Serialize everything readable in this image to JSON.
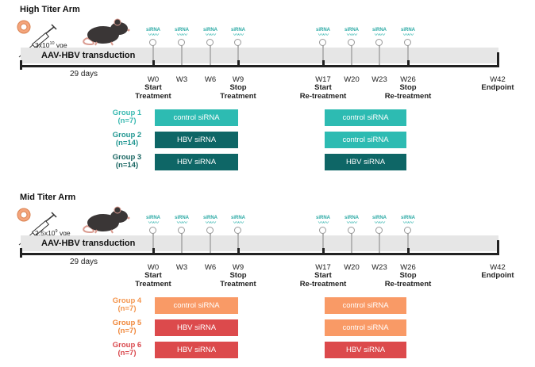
{
  "arms": [
    {
      "title": "High Titer Arm",
      "dose": "3x10",
      "dose_exp": "10",
      "dose_unit": " vge",
      "transduction": "AAV-HBV transduction",
      "days": "29 days",
      "weeks": [
        "W0",
        "W3",
        "W6",
        "W9",
        "W17",
        "W20",
        "W23",
        "W26",
        "W42"
      ],
      "phases": [
        {
          "week": "W0",
          "lines": [
            "Start",
            "Treatment"
          ]
        },
        {
          "week": "W9",
          "lines": [
            "Stop",
            "Treatment"
          ]
        },
        {
          "week": "W17",
          "lines": [
            "Start",
            "Re-treatment"
          ]
        },
        {
          "week": "W26",
          "lines": [
            "Stop",
            "Re-treatment"
          ]
        },
        {
          "week": "W42",
          "lines": [
            "Endpoint"
          ]
        }
      ],
      "sirna_label": "siRNA",
      "groups": [
        {
          "name": "Group 1",
          "n": "(n=7)",
          "color": "#3bbab2",
          "treatment": "control siRNA",
          "treatment_color": "#2dbbb2",
          "retreatment": "control siRNA",
          "retreatment_color": "#2dbbb2"
        },
        {
          "name": "Group 2",
          "n": "(n=14)",
          "color": "#1f9690",
          "treatment": "HBV siRNA",
          "treatment_color": "#0e6666",
          "retreatment": "control siRNA",
          "retreatment_color": "#2dbbb2"
        },
        {
          "name": "Group 3",
          "n": "(n=14)",
          "color": "#176460",
          "treatment": "HBV siRNA",
          "treatment_color": "#0e6666",
          "retreatment": "HBV siRNA",
          "retreatment_color": "#0e6666"
        }
      ]
    },
    {
      "title": "Mid Titer Arm",
      "dose": "2.5x10",
      "dose_exp": "9",
      "dose_unit": " vge",
      "transduction": "AAV-HBV transduction",
      "days": "29 days",
      "weeks": [
        "W0",
        "W3",
        "W6",
        "W9",
        "W17",
        "W20",
        "W23",
        "W26",
        "W42"
      ],
      "phases": [
        {
          "week": "W0",
          "lines": [
            "Start",
            "Treatment"
          ]
        },
        {
          "week": "W9",
          "lines": [
            "Stop",
            "Treatment"
          ]
        },
        {
          "week": "W17",
          "lines": [
            "Start",
            "Re-treatment"
          ]
        },
        {
          "week": "W26",
          "lines": [
            "Stop",
            "Re-treatment"
          ]
        },
        {
          "week": "W42",
          "lines": [
            "Endpoint"
          ]
        }
      ],
      "sirna_label": "siRNA",
      "groups": [
        {
          "name": "Group 4",
          "n": "(n=7)",
          "color": "#f4964e",
          "treatment": "control siRNA",
          "treatment_color": "#f99a66",
          "retreatment": "control siRNA",
          "retreatment_color": "#f99a66"
        },
        {
          "name": "Group 5",
          "n": "(n=7)",
          "color": "#f0883c",
          "treatment": "HBV siRNA",
          "treatment_color": "#dc4a4c",
          "retreatment": "control siRNA",
          "retreatment_color": "#f99a66"
        },
        {
          "name": "Group 6",
          "n": "(n=7)",
          "color": "#d9474c",
          "treatment": "HBV siRNA",
          "treatment_color": "#dc4a4c",
          "retreatment": "HBV siRNA",
          "retreatment_color": "#dc4a4c"
        }
      ]
    }
  ]
}
